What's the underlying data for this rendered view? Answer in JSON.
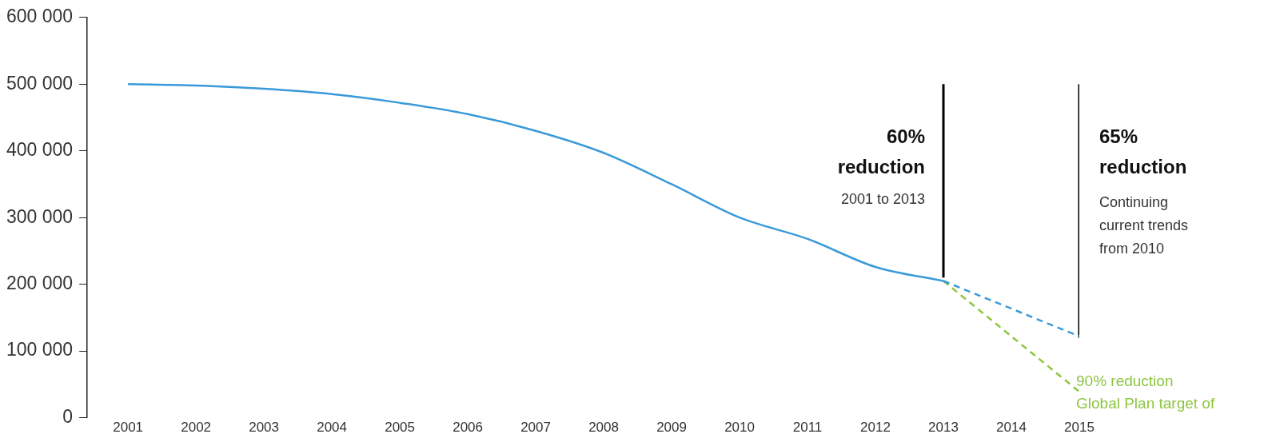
{
  "chart_data": {
    "type": "line",
    "xlim": [
      2000.4,
      2015
    ],
    "ylim": [
      0,
      600000
    ],
    "xticks": [
      2001,
      2002,
      2003,
      2004,
      2005,
      2006,
      2007,
      2008,
      2009,
      2010,
      2011,
      2012,
      2013,
      2014,
      2015
    ],
    "yticks": [
      {
        "value": 0,
        "label": "0"
      },
      {
        "value": 100000,
        "label": "100 000"
      },
      {
        "value": 200000,
        "label": "200 000"
      },
      {
        "value": 300000,
        "label": "300 000"
      },
      {
        "value": 400000,
        "label": "400 000"
      },
      {
        "value": 500000,
        "label": "500 000"
      },
      {
        "value": 600000,
        "label": "600 000"
      }
    ],
    "series": [
      {
        "color": "#3a9ad9",
        "x": [
          2001,
          2002,
          2003,
          2004,
          2005,
          2006,
          2007,
          2008,
          2009,
          2010,
          2011,
          2012,
          2013
        ],
        "values": [
          500000,
          498000,
          493000,
          485000,
          472000,
          455000,
          430000,
          397000,
          350000,
          300000,
          268000,
          226000,
          205000
        ]
      },
      {
        "color": "#3a9ad9",
        "line_style": "dashed",
        "x": [
          2013,
          2015
        ],
        "values": [
          205000,
          122000
        ]
      },
      {
        "color": "#8dc63f",
        "line_style": "dashed",
        "x": [
          2013,
          2015
        ],
        "values": [
          205000,
          39000
        ]
      },
      {
        "color": "#000000",
        "x": [
          2013,
          2013
        ],
        "values": [
          500000,
          210000
        ]
      },
      {
        "color": "#000000",
        "x": [
          2015,
          2015
        ],
        "values": [
          500000,
          120000
        ]
      }
    ],
    "annotations": [
      "60%\nreduction",
      "2001 to 2013",
      "65%\nreduction",
      "Continuing\ncurrent trends\nfrom 2010",
      "90% reduction\nGlobal Plan target of"
    ],
    "grid": false,
    "legend": false,
    "marker": "none"
  }
}
